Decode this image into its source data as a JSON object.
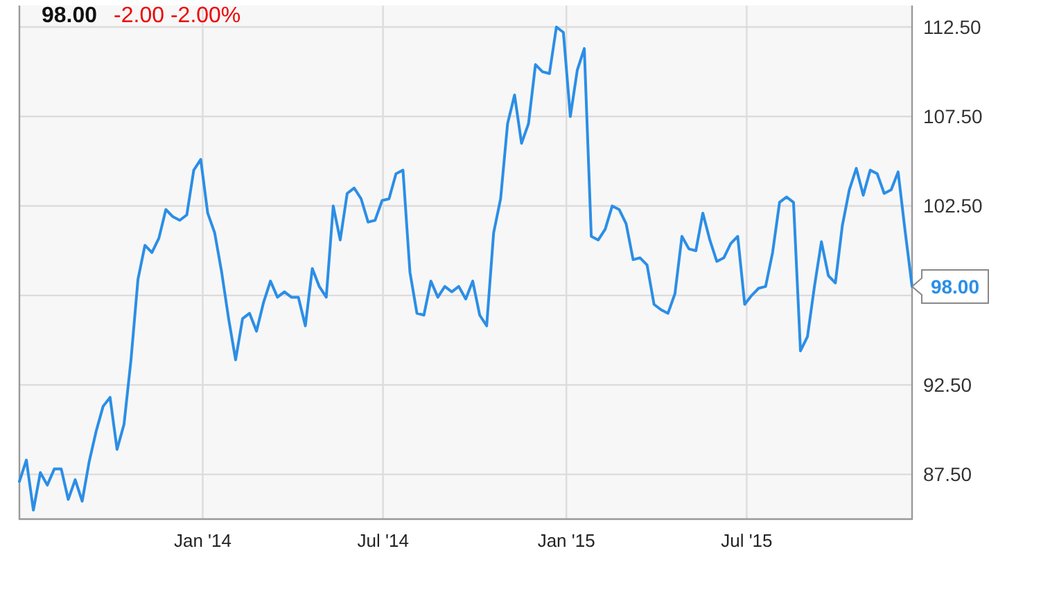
{
  "chart_data": {
    "type": "line",
    "title": "98.00",
    "subtitle": "-2.00  -2.00%",
    "x": [
      "2013-07-01",
      "2013-07-08",
      "2013-07-15",
      "2013-07-22",
      "2013-07-29",
      "2013-08-05",
      "2013-08-12",
      "2013-08-19",
      "2013-08-26",
      "2013-09-02",
      "2013-09-09",
      "2013-09-16",
      "2013-09-23",
      "2013-09-30",
      "2013-10-07",
      "2013-10-14",
      "2013-10-21",
      "2013-10-28",
      "2013-11-04",
      "2013-11-11",
      "2013-11-18",
      "2013-11-25",
      "2013-12-02",
      "2013-12-09",
      "2013-12-16",
      "2013-12-23",
      "2013-12-30",
      "2014-01-06",
      "2014-01-13",
      "2014-01-20",
      "2014-01-27",
      "2014-02-03",
      "2014-02-10",
      "2014-02-17",
      "2014-02-24",
      "2014-03-03",
      "2014-03-10",
      "2014-03-17",
      "2014-03-24",
      "2014-03-31",
      "2014-04-07",
      "2014-04-14",
      "2014-04-21",
      "2014-04-28",
      "2014-05-05",
      "2014-05-12",
      "2014-05-19",
      "2014-05-26",
      "2014-06-02",
      "2014-06-09",
      "2014-06-16",
      "2014-06-23",
      "2014-06-30",
      "2014-07-07",
      "2014-07-14",
      "2014-07-21",
      "2014-07-28",
      "2014-08-04",
      "2014-08-11",
      "2014-08-18",
      "2014-08-25",
      "2014-09-01",
      "2014-09-08",
      "2014-09-15",
      "2014-09-22",
      "2014-09-29",
      "2014-10-06",
      "2014-10-13",
      "2014-10-20",
      "2014-10-27",
      "2014-11-03",
      "2014-11-10",
      "2014-11-17",
      "2014-11-24",
      "2014-12-01",
      "2014-12-08",
      "2014-12-15",
      "2014-12-22",
      "2014-12-29",
      "2015-01-05",
      "2015-01-12",
      "2015-01-19",
      "2015-01-26",
      "2015-02-02",
      "2015-02-09",
      "2015-02-16",
      "2015-02-23",
      "2015-03-02",
      "2015-03-09",
      "2015-03-16",
      "2015-03-23",
      "2015-03-30",
      "2015-04-06",
      "2015-04-13",
      "2015-04-20",
      "2015-04-27",
      "2015-05-04",
      "2015-05-11",
      "2015-05-18",
      "2015-05-25",
      "2015-06-01",
      "2015-06-08",
      "2015-06-15",
      "2015-06-22",
      "2015-06-29",
      "2015-07-06",
      "2015-07-13",
      "2015-07-20",
      "2015-07-27",
      "2015-08-03",
      "2015-08-10",
      "2015-08-17",
      "2015-08-24",
      "2015-08-31",
      "2015-09-07",
      "2015-09-14",
      "2015-09-21",
      "2015-09-28",
      "2015-10-05",
      "2015-10-12",
      "2015-10-19",
      "2015-10-26",
      "2015-11-02",
      "2015-11-09",
      "2015-11-16",
      "2015-11-23",
      "2015-11-30",
      "2015-12-07",
      "2015-12-14"
    ],
    "series": [
      {
        "color": "#2b8ee6",
        "values": [
          87.1,
          88.3,
          85.5,
          87.6,
          86.9,
          87.8,
          87.8,
          86.1,
          87.2,
          86.0,
          88.2,
          89.9,
          91.3,
          91.8,
          88.9,
          90.3,
          93.9,
          98.4,
          100.3,
          99.9,
          100.7,
          102.3,
          101.9,
          101.7,
          102.0,
          104.5,
          105.1,
          102.1,
          101.0,
          98.8,
          96.2,
          93.9,
          96.2,
          96.5,
          95.5,
          97.1,
          98.3,
          97.4,
          97.7,
          97.4,
          97.4,
          95.8,
          99.0,
          98.0,
          97.4,
          102.5,
          100.6,
          103.2,
          103.5,
          102.9,
          101.6,
          101.7,
          102.8,
          102.9,
          104.3,
          104.5,
          98.8,
          96.5,
          96.4,
          98.3,
          97.4,
          98.0,
          97.7,
          98.0,
          97.3,
          98.3,
          96.4,
          95.8,
          101.0,
          102.9,
          107.1,
          108.7,
          106.0,
          107.1,
          110.4,
          110.0,
          109.9,
          112.5,
          112.2,
          107.5,
          110.1,
          111.3,
          100.8,
          100.6,
          101.2,
          102.5,
          102.3,
          101.5,
          99.5,
          99.6,
          99.2,
          97.0,
          96.7,
          96.5,
          97.6,
          100.8,
          100.1,
          100.0,
          102.1,
          100.6,
          99.4,
          99.6,
          100.4,
          100.8,
          97.0,
          97.5,
          97.9,
          98.0,
          99.9,
          102.7,
          103.0,
          102.7,
          94.4,
          95.2,
          98.0,
          100.5,
          98.6,
          98.2,
          101.4,
          103.4,
          104.6,
          103.1,
          104.5,
          104.3,
          103.2,
          103.4,
          104.4,
          101.1,
          98.0
        ]
      }
    ],
    "xlim": [
      "2013-07-01",
      "2015-12-14"
    ],
    "xticks": [
      {
        "value": "2014-01-01",
        "label": "Jan '14"
      },
      {
        "value": "2014-07-01",
        "label": "Jul '14"
      },
      {
        "value": "2015-01-01",
        "label": "Jan '15"
      },
      {
        "value": "2015-07-01",
        "label": "Jul '15"
      }
    ],
    "ylim": [
      85,
      113.7
    ],
    "yticks": [
      {
        "value": 87.5,
        "label": "87.50"
      },
      {
        "value": 92.5,
        "label": "92.50"
      },
      {
        "value": 97.5,
        "label": null
      },
      {
        "value": 102.5,
        "label": "102.50"
      },
      {
        "value": 107.5,
        "label": "107.50"
      },
      {
        "value": 112.5,
        "label": "112.50"
      }
    ],
    "annotations": [
      {
        "text": "98.00",
        "x": "2015-12-14",
        "y": 98.0
      }
    ],
    "grid": true,
    "marker": "none",
    "line_style": "solid"
  }
}
